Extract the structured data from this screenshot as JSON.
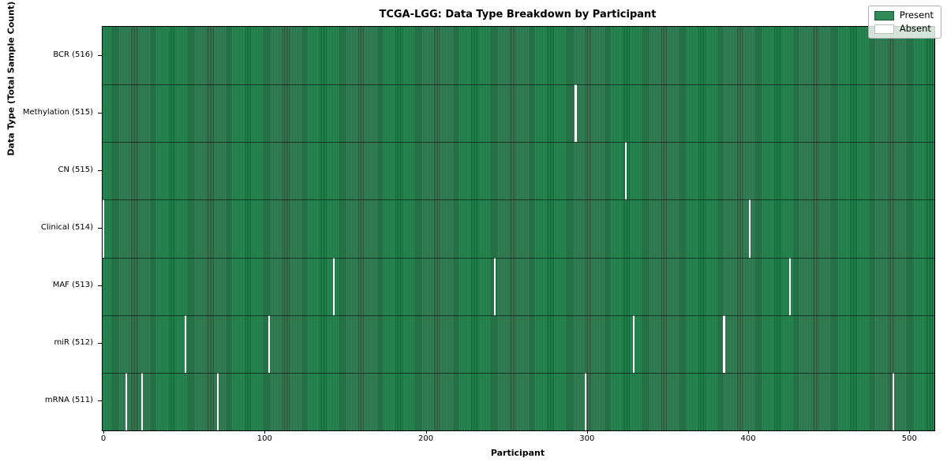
{
  "title": "TCGA-LGG: Data Type Breakdown by Participant",
  "xlabel": "Participant",
  "ylabel": "Data Type (Total Sample Count)",
  "legend": {
    "present_label": "Present",
    "absent_label": "Absent"
  },
  "colors": {
    "present": "#2e8b57",
    "present_dark": "#1c5434",
    "absent": "#ffffff"
  },
  "chart_data": {
    "type": "heatmap",
    "title": "TCGA-LGG: Data Type Breakdown by Participant",
    "xlabel": "Participant",
    "ylabel": "Data Type (Total Sample Count)",
    "legend_entries": [
      "Present",
      "Absent"
    ],
    "legend_position": "upper right",
    "grid": false,
    "n_participants": 516,
    "x_range": [
      0,
      515
    ],
    "x_ticks": [
      0,
      100,
      200,
      300,
      400,
      500
    ],
    "rows": [
      {
        "label": "BCR (516)",
        "data_type": "BCR",
        "present_count": 516,
        "absent_participants": []
      },
      {
        "label": "Methylation (515)",
        "data_type": "Methylation",
        "present_count": 515,
        "absent_participants": [
          293
        ]
      },
      {
        "label": "CN (515)",
        "data_type": "CN",
        "present_count": 515,
        "absent_participants": [
          324
        ]
      },
      {
        "label": "Clinical (514)",
        "data_type": "Clinical",
        "present_count": 514,
        "absent_participants": [
          0,
          401
        ]
      },
      {
        "label": "MAF (513)",
        "data_type": "MAF",
        "present_count": 513,
        "absent_participants": [
          143,
          243,
          426
        ]
      },
      {
        "label": "miR (512)",
        "data_type": "miR",
        "present_count": 512,
        "absent_participants": [
          51,
          103,
          329,
          385
        ]
      },
      {
        "label": "mRNA (511)",
        "data_type": "mRNA",
        "present_count": 511,
        "absent_participants": [
          14,
          24,
          71,
          299,
          490
        ]
      }
    ]
  }
}
